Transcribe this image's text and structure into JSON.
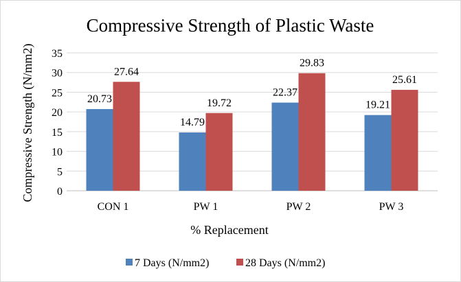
{
  "chart_data": {
    "type": "bar",
    "title": "Compressive  Strength  of Plastic  Waste",
    "xlabel": "% Replacement",
    "ylabel": "Compressive Strength (N/mm2)",
    "categories": [
      "CON 1",
      "PW 1",
      "PW 2",
      "PW 3"
    ],
    "series": [
      {
        "name": "7 Days (N/mm2)",
        "color": "#4F81BD",
        "values": [
          20.73,
          14.79,
          22.37,
          19.21
        ],
        "labels": [
          "20.73",
          "14.79",
          "22.37",
          "19.21"
        ]
      },
      {
        "name": "28 Days (N/mm2)",
        "color": "#C0504D",
        "values": [
          27.64,
          19.72,
          29.83,
          25.61
        ],
        "labels": [
          "27.64",
          "19.72",
          "29.83",
          "25.61"
        ]
      }
    ],
    "ylim": [
      0,
      35
    ],
    "yticks": [
      "0",
      "5",
      "10",
      "15",
      "20",
      "25",
      "30",
      "35"
    ],
    "grid": true,
    "legend": "bottom"
  }
}
